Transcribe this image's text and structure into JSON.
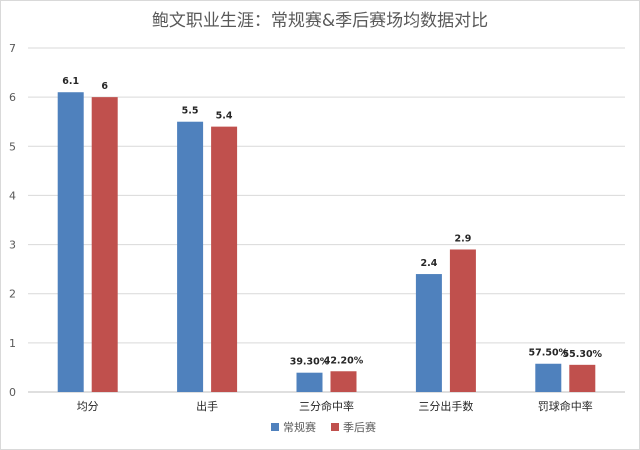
{
  "chart_data": {
    "type": "bar",
    "title": "鲍文职业生涯：常规赛&季后赛场均数据对比",
    "categories": [
      "均分",
      "出手",
      "三分命中率",
      "三分出手数",
      "罚球命中率"
    ],
    "series": [
      {
        "name": "常规赛",
        "values": [
          6.1,
          5.5,
          0.393,
          2.4,
          0.575
        ],
        "labels": [
          "6.1",
          "5.5",
          "39.30%",
          "2.4",
          "57.50%"
        ],
        "color": "#4f81bd"
      },
      {
        "name": "季后赛",
        "values": [
          6,
          5.4,
          0.422,
          2.9,
          0.553
        ],
        "labels": [
          "6",
          "5.4",
          "42.20%",
          "2.9",
          "55.30%"
        ],
        "color": "#c0504d"
      }
    ],
    "ylim": [
      0,
      7
    ],
    "yticks": [
      "0",
      "1",
      "2",
      "3",
      "4",
      "5",
      "6",
      "7"
    ],
    "grid": true,
    "legend": "bottom"
  }
}
